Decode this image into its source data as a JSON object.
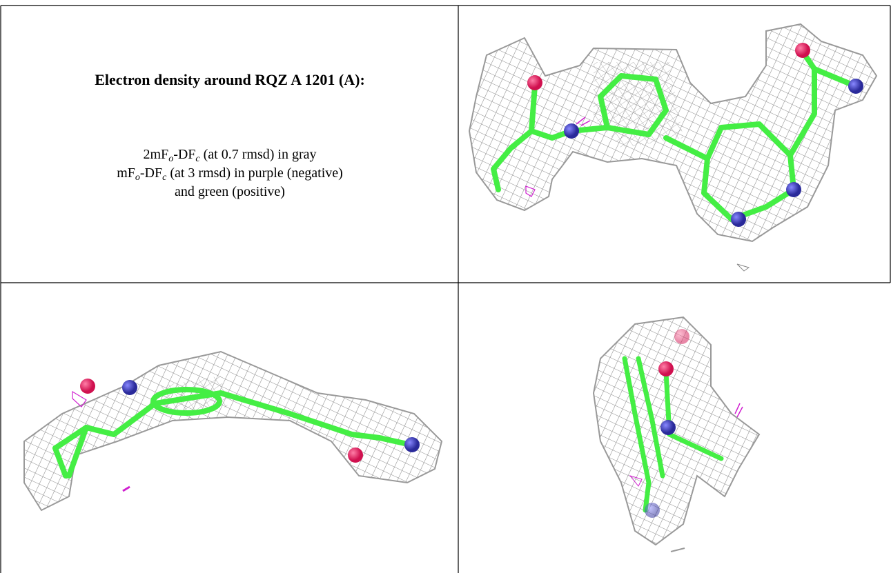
{
  "figure": {
    "title": "Electron density around RQZ A 1201 (A):",
    "legend_lines": [
      {
        "parts": [
          "2mF",
          "o",
          "-DF",
          "c",
          " (at 0.7 rmsd) in gray"
        ]
      },
      {
        "parts": [
          "mF",
          "o",
          "-DF",
          "c",
          " (at 3 rmsd) in purple (negative)"
        ]
      },
      {
        "parts": [
          "and green (positive)"
        ]
      }
    ]
  }
}
